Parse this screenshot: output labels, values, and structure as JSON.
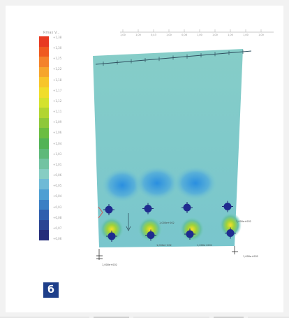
{
  "figure": {
    "tag": "б",
    "legend_title": "Rmax V...",
    "legend_colors": [
      "#e83a22",
      "#ef5a20",
      "#f4822a",
      "#f6a52c",
      "#f7c52a",
      "#f0dd2a",
      "#d4e22d",
      "#b2d531",
      "#8ec83a",
      "#6bbd41",
      "#52b356",
      "#5eb97a",
      "#72c3a2",
      "#86cdc3",
      "#6fbad6",
      "#4e9fd3",
      "#3a7fc4",
      "#2f5fae",
      "#2a4593",
      "#252c7a"
    ],
    "legend_labels": [
      "+1,38",
      "+1,30",
      "+1,25",
      "+1,22",
      "+1,18",
      "+1,17",
      "+1,12",
      "+1,11",
      "+1,09",
      "+1,06",
      "+1,04",
      "+1,03",
      "+1,01",
      "+0,06",
      "+0,05",
      "+0,04",
      "+0,03",
      "+0,08",
      "+0,07",
      "+0,06"
    ],
    "top_scale": [
      "1,00",
      "1,00",
      "0,43",
      "1,00",
      "0,08",
      "1,00",
      "1,00",
      "1,00",
      "1,00",
      "1,00"
    ],
    "node_labels": [
      "1,000e+002",
      "1,000e+002",
      "1,000e+002",
      "1,000e+002"
    ],
    "support_labels": [
      "1,000e+002",
      "1,000e+002"
    ]
  }
}
